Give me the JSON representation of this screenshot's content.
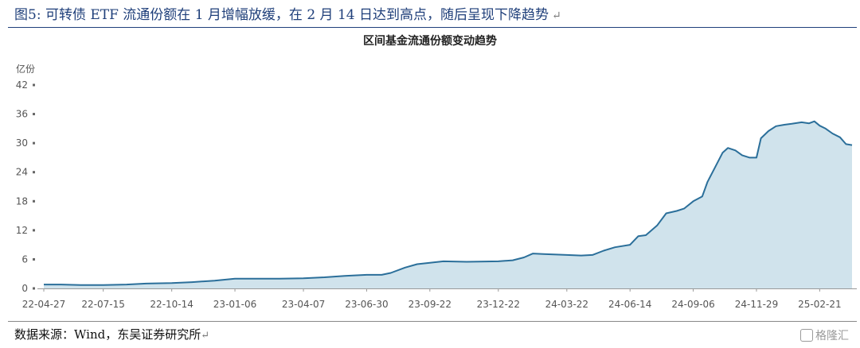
{
  "figure": {
    "title": "图5:  可转债 ETF 流通份额在 1 月增幅放缓，在 2 月 14 日达到高点，随后呈现下降趋势",
    "return_mark": "↵",
    "source": "数据来源：Wind，东吴证券研究所",
    "watermark": "格隆汇"
  },
  "colors": {
    "line": "#2b6f9a",
    "fill": "#d0e3ec",
    "axis_text": "#555555",
    "title_blue": "#1f3f7a"
  },
  "chart_data": {
    "type": "area",
    "title": "区间基金流通份额变动趋势",
    "ylabel": "亿份",
    "xlabel": "",
    "ylim": [
      0,
      42
    ],
    "yticks": [
      0,
      6,
      12,
      18,
      24,
      30,
      36,
      42
    ],
    "x_start": "2022-04-27",
    "x_end": "2025-04-05",
    "xtick_labels": [
      "22-04-27",
      "22-07-15",
      "22-10-14",
      "23-01-06",
      "23-04-07",
      "23-06-30",
      "23-09-22",
      "23-12-22",
      "24-03-22",
      "24-06-14",
      "24-09-06",
      "24-11-29",
      "25-02-21"
    ],
    "xtick_dates": [
      "2022-04-27",
      "2022-07-15",
      "2022-10-14",
      "2023-01-06",
      "2023-04-07",
      "2023-06-30",
      "2023-09-22",
      "2023-12-22",
      "2024-03-22",
      "2024-06-14",
      "2024-09-06",
      "2024-11-29",
      "2025-02-21"
    ],
    "grid": false,
    "series": [
      {
        "name": "",
        "points": [
          [
            "2022-04-27",
            0.8
          ],
          [
            "2022-05-20",
            0.8
          ],
          [
            "2022-06-15",
            0.7
          ],
          [
            "2022-07-15",
            0.7
          ],
          [
            "2022-08-15",
            0.8
          ],
          [
            "2022-09-10",
            1.0
          ],
          [
            "2022-10-14",
            1.1
          ],
          [
            "2022-11-10",
            1.3
          ],
          [
            "2022-12-10",
            1.6
          ],
          [
            "2023-01-06",
            2.0
          ],
          [
            "2023-02-06",
            2.0
          ],
          [
            "2023-03-06",
            2.0
          ],
          [
            "2023-04-07",
            2.1
          ],
          [
            "2023-05-05",
            2.3
          ],
          [
            "2023-06-01",
            2.6
          ],
          [
            "2023-06-30",
            2.8
          ],
          [
            "2023-07-20",
            2.8
          ],
          [
            "2023-08-01",
            3.2
          ],
          [
            "2023-08-20",
            4.3
          ],
          [
            "2023-09-05",
            5.0
          ],
          [
            "2023-09-22",
            5.3
          ],
          [
            "2023-10-10",
            5.6
          ],
          [
            "2023-11-10",
            5.5
          ],
          [
            "2023-12-22",
            5.6
          ],
          [
            "2024-01-10",
            5.8
          ],
          [
            "2024-01-25",
            6.4
          ],
          [
            "2024-02-06",
            7.2
          ],
          [
            "2024-02-20",
            7.1
          ],
          [
            "2024-03-22",
            6.9
          ],
          [
            "2024-04-10",
            6.8
          ],
          [
            "2024-04-25",
            6.9
          ],
          [
            "2024-05-10",
            7.8
          ],
          [
            "2024-05-25",
            8.5
          ],
          [
            "2024-06-14",
            9.0
          ],
          [
            "2024-06-25",
            10.8
          ],
          [
            "2024-07-05",
            11.0
          ],
          [
            "2024-07-20",
            13.0
          ],
          [
            "2024-08-01",
            15.5
          ],
          [
            "2024-08-15",
            16.0
          ],
          [
            "2024-08-25",
            16.5
          ],
          [
            "2024-09-06",
            18.0
          ],
          [
            "2024-09-18",
            19.0
          ],
          [
            "2024-09-25",
            22.0
          ],
          [
            "2024-10-05",
            25.0
          ],
          [
            "2024-10-15",
            28.0
          ],
          [
            "2024-10-22",
            29.0
          ],
          [
            "2024-11-01",
            28.5
          ],
          [
            "2024-11-10",
            27.5
          ],
          [
            "2024-11-20",
            27.0
          ],
          [
            "2024-11-29",
            27.0
          ],
          [
            "2024-12-05",
            31.0
          ],
          [
            "2024-12-15",
            32.5
          ],
          [
            "2024-12-25",
            33.5
          ],
          [
            "2025-01-05",
            33.8
          ],
          [
            "2025-01-15",
            34.0
          ],
          [
            "2025-01-28",
            34.3
          ],
          [
            "2025-02-07",
            34.1
          ],
          [
            "2025-02-14",
            34.5
          ],
          [
            "2025-02-21",
            33.6
          ],
          [
            "2025-03-01",
            33.0
          ],
          [
            "2025-03-10",
            32.0
          ],
          [
            "2025-03-20",
            31.2
          ],
          [
            "2025-03-28",
            29.8
          ],
          [
            "2025-04-05",
            29.6
          ]
        ]
      }
    ]
  }
}
